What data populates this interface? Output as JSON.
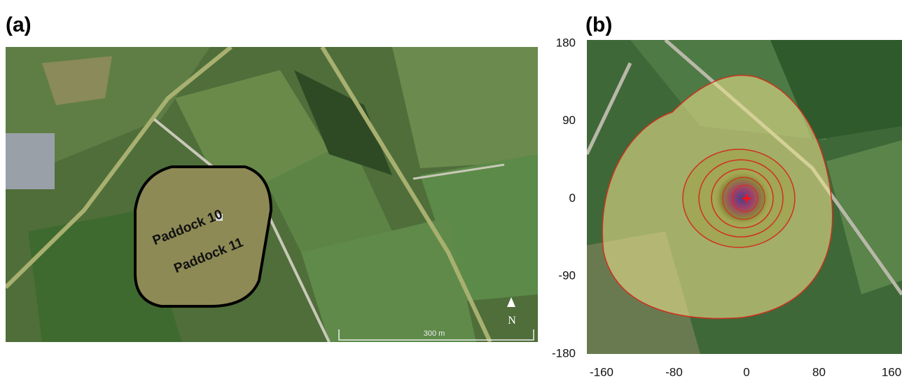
{
  "panel_a": {
    "label": "(a)",
    "paddocks": [
      "Paddock 10",
      "Paddock 11"
    ],
    "scale_bar": "300 m",
    "north": "N"
  },
  "panel_b": {
    "label": "(b)",
    "xticks": [
      -160,
      -80,
      0,
      80,
      160
    ],
    "yticks": [
      180,
      90,
      0,
      -90,
      -180
    ]
  }
}
